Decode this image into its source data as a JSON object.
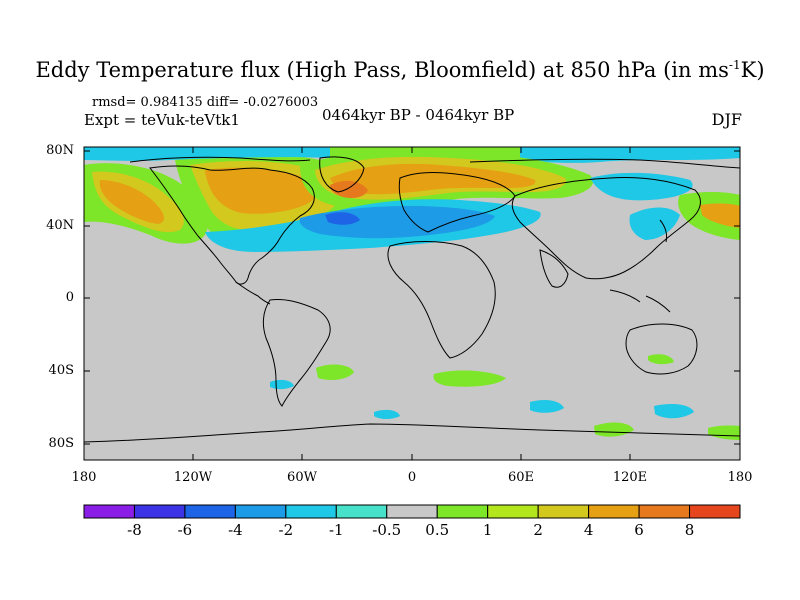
{
  "title": {
    "main": "Eddy Temperature flux (High Pass, Bloomfield) at 850 hPa (in ms",
    "sup": "-1",
    "end": "K)"
  },
  "stats": "rmsd= 0.984135 diff= -0.0276003",
  "expt": "Expt = teVuk-teVtk1",
  "period": "0464kyr BP - 0464kyr BP",
  "season": "DJF",
  "lat_labels": [
    "80N",
    "40N",
    "0",
    "40S",
    "80S"
  ],
  "lon_labels": [
    "180",
    "120W",
    "60W",
    "0",
    "60E",
    "120E",
    "180"
  ],
  "colorbar": {
    "labels": [
      "-8",
      "-6",
      "-4",
      "-2",
      "-1",
      "-0.5",
      "0.5",
      "1",
      "2",
      "4",
      "6",
      "8"
    ],
    "colors": [
      "#8a1ee6",
      "#3c32e6",
      "#1e64e6",
      "#1e9be6",
      "#1ec8e6",
      "#46e1c8",
      "#c8c8c8",
      "#7ee628",
      "#b4e61e",
      "#d2c81e",
      "#e6a014",
      "#e6781e",
      "#e6461e"
    ]
  },
  "colors": {
    "land_gray": "#c8c8c8",
    "background": "#ffffff"
  }
}
